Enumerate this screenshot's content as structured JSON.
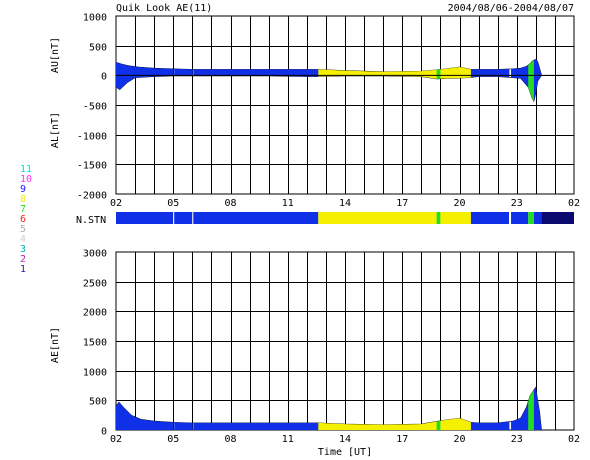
{
  "header": {
    "title": "Quik Look AE(11)",
    "date_range": "2004/08/06-2004/08/07"
  },
  "colors": {
    "blue": "#1030e8",
    "yellow": "#f5f000",
    "green": "#22dd22",
    "navy": "#0a0a70",
    "grid": "#000000"
  },
  "station_legend": [
    {
      "label": "11",
      "color": "#00e0e0"
    },
    {
      "label": "10",
      "color": "#ff30ff"
    },
    {
      "label": "9",
      "color": "#2020ff"
    },
    {
      "label": "8",
      "color": "#f0f000"
    },
    {
      "label": "7",
      "color": "#20e020"
    },
    {
      "label": "6",
      "color": "#ff2020"
    },
    {
      "label": "5",
      "color": "#b0b0b0"
    },
    {
      "label": "4",
      "color": "#d0d0d0"
    },
    {
      "label": "3",
      "color": "#00b0b0"
    },
    {
      "label": "2",
      "color": "#c020c0"
    },
    {
      "label": "1",
      "color": "#2020c0"
    }
  ],
  "chart_data": [
    {
      "type": "area",
      "id": "au_al",
      "ylabel_top": "AU[nT]",
      "ylabel_bottom": "AL[nT]",
      "ylim": [
        -2000,
        1000
      ],
      "yticks": [
        1000,
        500,
        0,
        -500,
        -1000,
        -1500,
        -2000
      ],
      "xlim_hours": [
        2,
        26
      ],
      "xtick_labels": [
        "02",
        "05",
        "08",
        "11",
        "14",
        "17",
        "20",
        "23",
        "02"
      ],
      "grid": true,
      "au": {
        "x": [
          2.0,
          2.3,
          2.7,
          3.2,
          4.0,
          5.0,
          6.0,
          8.0,
          10.0,
          12.0,
          12.6,
          14.0,
          16.0,
          18.0,
          18.7,
          19.3,
          20.0,
          20.6,
          21.0,
          22.0,
          22.8,
          23.2,
          23.5,
          23.7,
          23.85,
          24.0,
          24.1,
          24.2,
          24.3,
          26.0
        ],
        "y": [
          220,
          190,
          160,
          140,
          120,
          110,
          100,
          100,
          100,
          100,
          100,
          80,
          60,
          70,
          90,
          110,
          140,
          100,
          100,
          100,
          110,
          120,
          150,
          200,
          250,
          270,
          230,
          120,
          0,
          0
        ]
      },
      "al": {
        "x": [
          2.0,
          2.2,
          2.6,
          3.0,
          4.0,
          5.0,
          6.0,
          8.0,
          10.0,
          12.0,
          12.6,
          14.0,
          16.0,
          18.0,
          18.8,
          19.5,
          20.5,
          21.0,
          22.0,
          22.8,
          23.2,
          23.6,
          23.8,
          23.9,
          24.0,
          24.1,
          24.3,
          26.0
        ],
        "y": [
          -200,
          -240,
          -120,
          -40,
          -20,
          -10,
          -10,
          -10,
          -10,
          -20,
          -20,
          -10,
          -10,
          -20,
          -60,
          -50,
          -40,
          -20,
          -20,
          -40,
          -50,
          -200,
          -380,
          -440,
          -300,
          -100,
          0,
          0
        ]
      }
    },
    {
      "type": "bar",
      "id": "n_stn",
      "label": "N.STN",
      "segments": [
        {
          "from": 2.0,
          "to": 5.0,
          "color": "blue"
        },
        {
          "from": 5.0,
          "to": 5.05,
          "color": "white"
        },
        {
          "from": 5.05,
          "to": 6.0,
          "color": "blue"
        },
        {
          "from": 6.0,
          "to": 6.05,
          "color": "white"
        },
        {
          "from": 6.05,
          "to": 12.6,
          "color": "blue"
        },
        {
          "from": 12.6,
          "to": 18.8,
          "color": "yellow"
        },
        {
          "from": 18.8,
          "to": 19.0,
          "color": "green"
        },
        {
          "from": 19.0,
          "to": 20.6,
          "color": "yellow"
        },
        {
          "from": 20.6,
          "to": 22.6,
          "color": "blue"
        },
        {
          "from": 22.6,
          "to": 22.7,
          "color": "white"
        },
        {
          "from": 22.7,
          "to": 23.6,
          "color": "blue"
        },
        {
          "from": 23.6,
          "to": 23.9,
          "color": "green"
        },
        {
          "from": 23.9,
          "to": 24.3,
          "color": "blue"
        },
        {
          "from": 24.3,
          "to": 26.0,
          "color": "navy"
        }
      ]
    },
    {
      "type": "area",
      "id": "ae",
      "ylabel": "AE[nT]",
      "xlabel": "Time [UT]",
      "ylim": [
        0,
        3000
      ],
      "yticks": [
        3000,
        2500,
        2000,
        1500,
        1000,
        500,
        0
      ],
      "xlim_hours": [
        2,
        26
      ],
      "xtick_labels": [
        "02",
        "05",
        "08",
        "11",
        "14",
        "17",
        "20",
        "23",
        "02"
      ],
      "grid": true,
      "ae": {
        "x": [
          2.0,
          2.15,
          2.4,
          2.8,
          3.3,
          4.0,
          5.0,
          6.0,
          8.0,
          10.0,
          12.0,
          12.6,
          14.0,
          16.0,
          18.0,
          18.7,
          19.3,
          20.0,
          20.6,
          21.0,
          22.0,
          22.8,
          23.2,
          23.5,
          23.7,
          23.9,
          24.0,
          24.1,
          24.2,
          24.3,
          26.0
        ],
        "y": [
          400,
          470,
          380,
          250,
          180,
          150,
          130,
          120,
          120,
          120,
          120,
          120,
          100,
          90,
          100,
          140,
          170,
          200,
          130,
          120,
          120,
          150,
          200,
          380,
          580,
          680,
          720,
          500,
          300,
          0,
          0
        ]
      }
    }
  ]
}
